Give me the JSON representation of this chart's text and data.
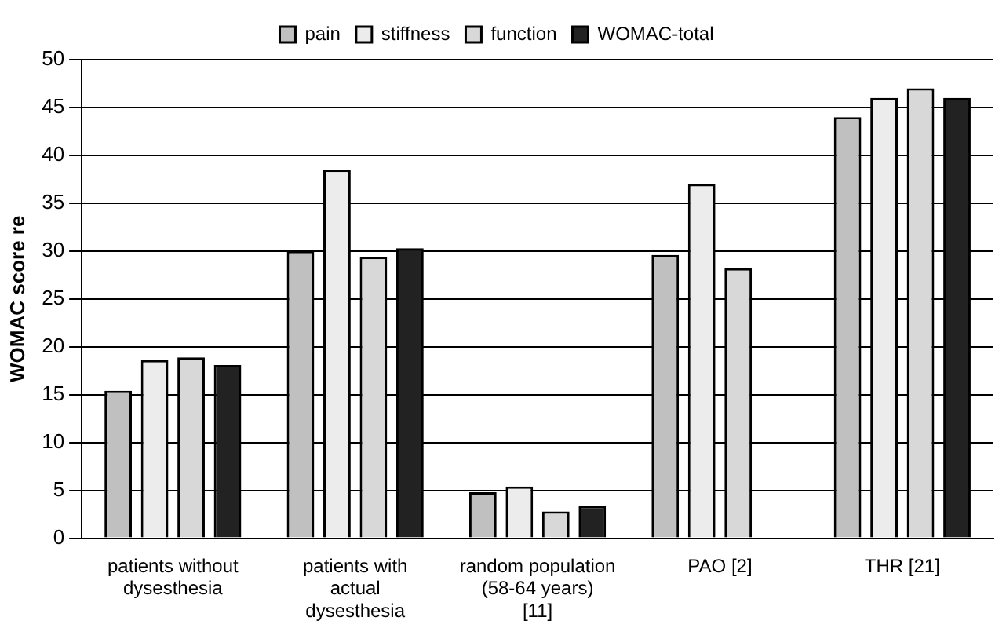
{
  "chart_data": {
    "type": "bar",
    "ylabel": "WOMAC score re",
    "categories": [
      "patients without dysesthesia",
      "patients with actual dysesthesia",
      "random population (58-64 years) [11]",
      "PAO [2]",
      "THR [21]"
    ],
    "series": [
      {
        "name": "pain",
        "color": "#c0c0c0",
        "values": [
          15.4,
          30,
          4.8,
          29.6,
          44
        ]
      },
      {
        "name": "stiffness",
        "color": "#ececec",
        "values": [
          18.6,
          38.5,
          5.4,
          37,
          46
        ]
      },
      {
        "name": "function",
        "color": "#d8d8d8",
        "values": [
          18.9,
          29.4,
          2.8,
          28.2,
          47
        ]
      },
      {
        "name": "WOMAC-total",
        "color": "#222222",
        "values": [
          18.1,
          30.3,
          3.4,
          null,
          46
        ]
      }
    ],
    "ylim": [
      0,
      50
    ],
    "yticks": [
      0,
      5,
      10,
      15,
      20,
      25,
      30,
      35,
      40,
      45,
      50
    ],
    "grid": "y",
    "legend": "top"
  }
}
